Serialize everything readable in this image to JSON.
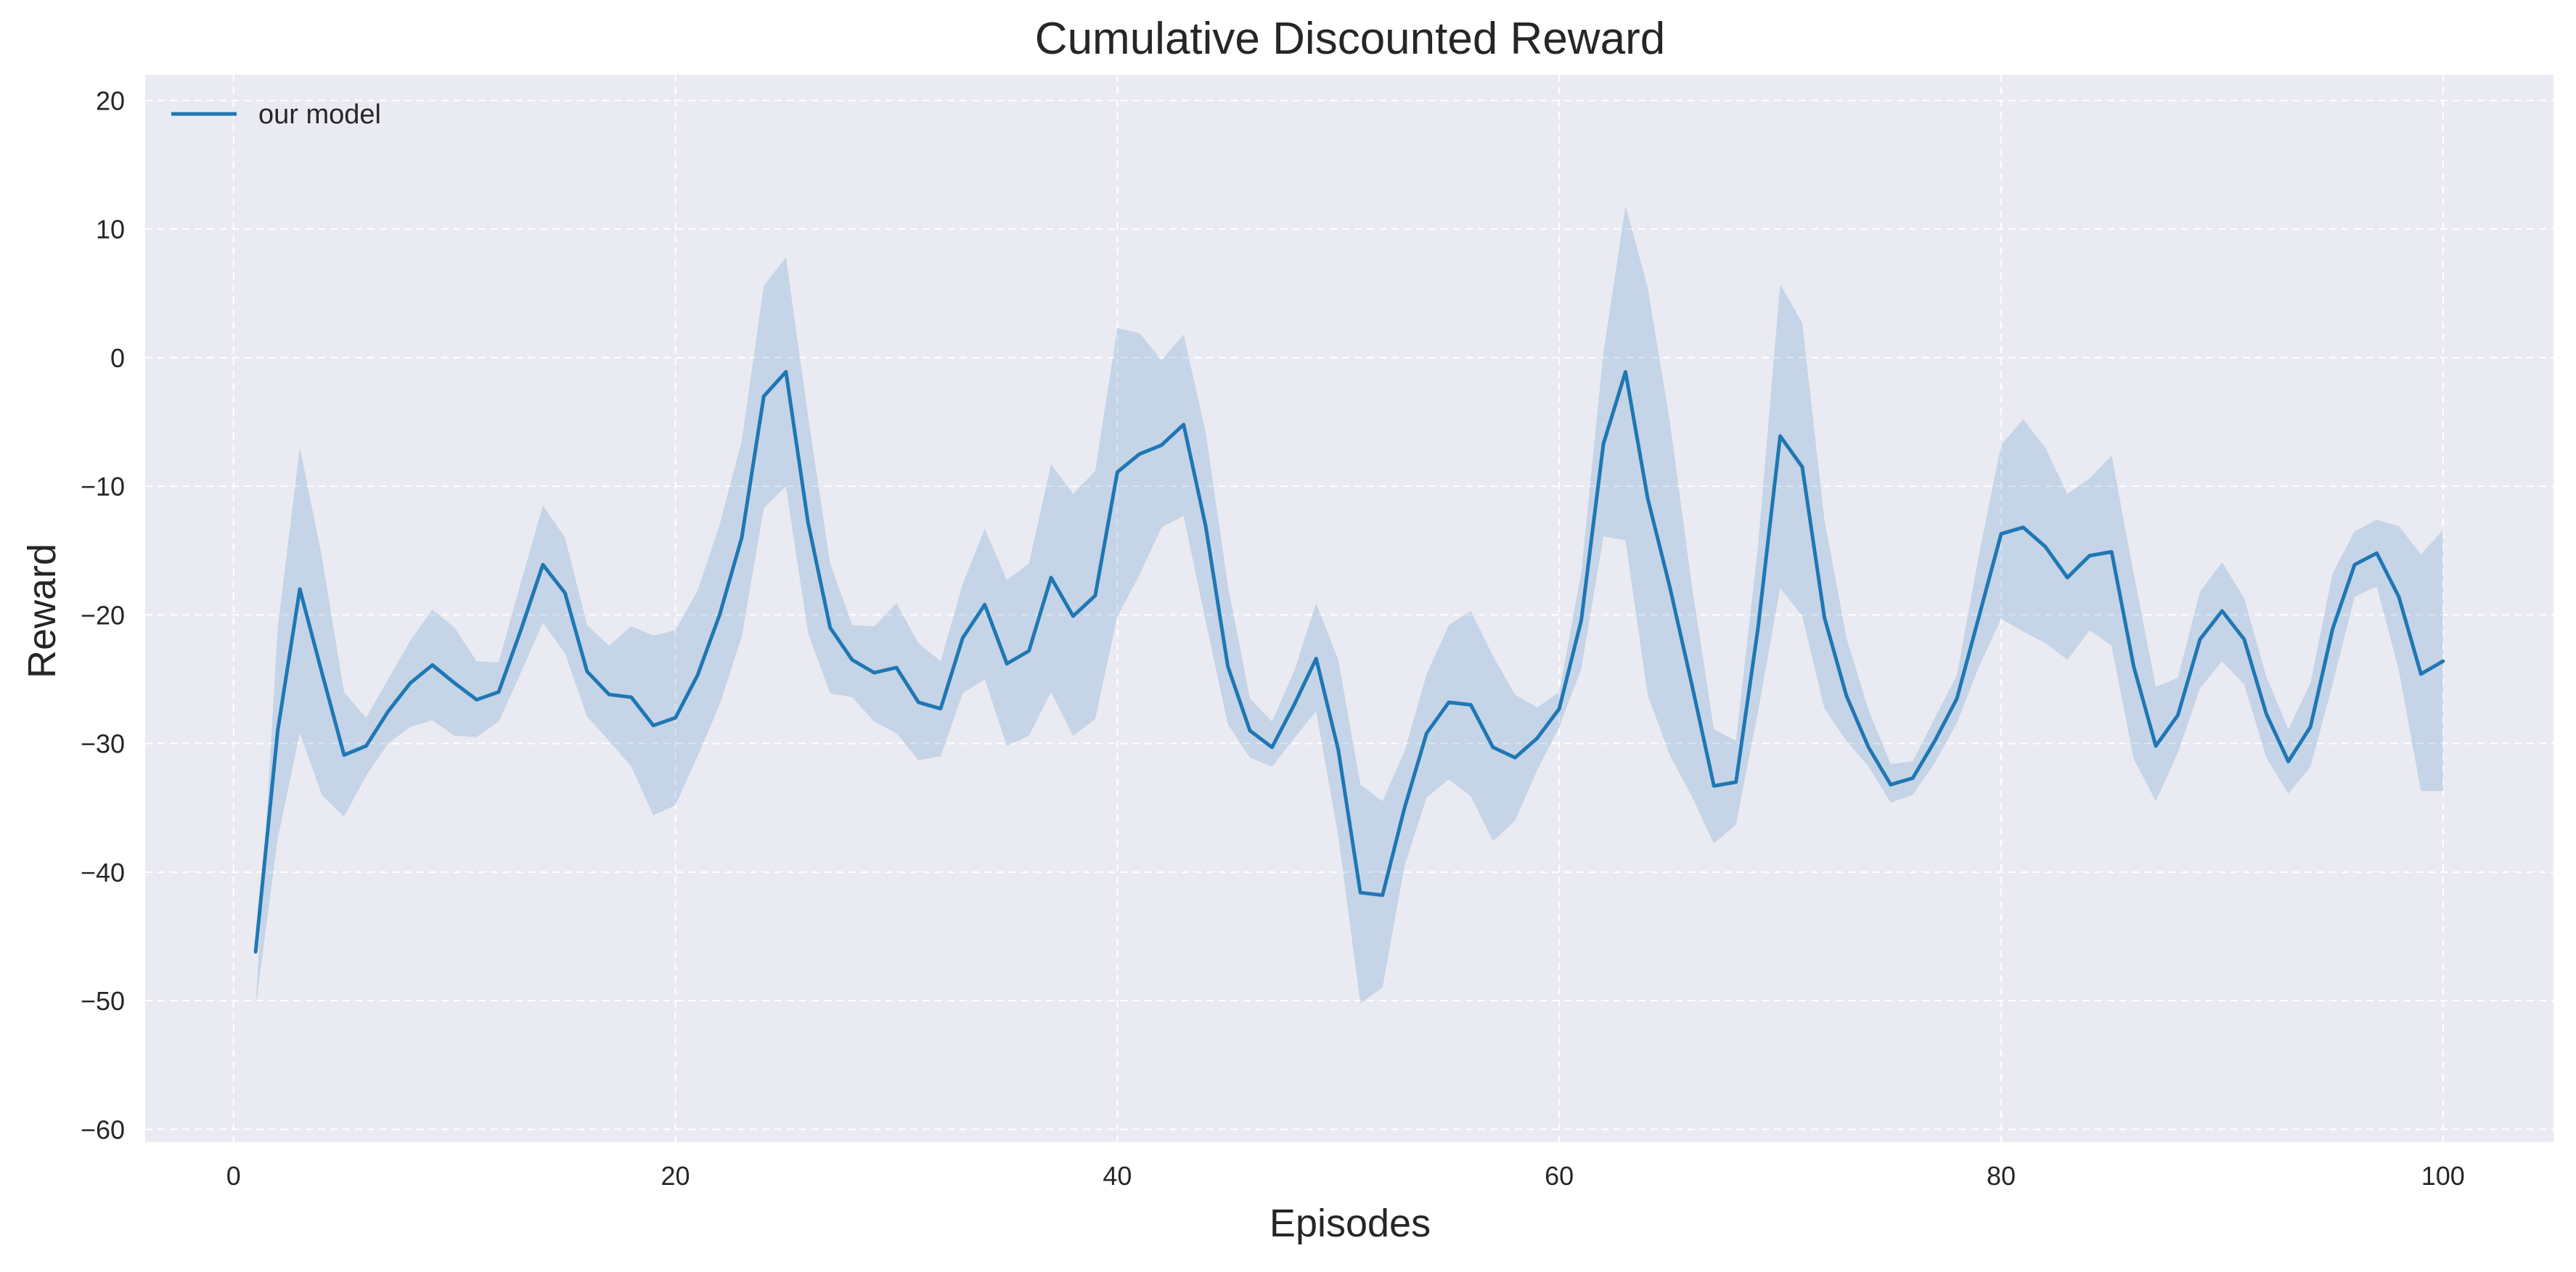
{
  "chart_data": {
    "type": "line",
    "title": "Cumulative Discounted Reward",
    "xlabel": "Episodes",
    "ylabel": "Reward",
    "xlim": [
      -4,
      105
    ],
    "ylim": [
      -61,
      22
    ],
    "xticks": [
      0,
      20,
      40,
      60,
      80,
      100
    ],
    "yticks": [
      -60,
      -50,
      -40,
      -30,
      -20,
      -10,
      0,
      10,
      20
    ],
    "grid": true,
    "legend_location": "top-left",
    "colors": {
      "line": "#1f77b4",
      "band": "#1f77b4",
      "background": "#eaeaf2",
      "grid": "#ffffff"
    },
    "series": [
      {
        "name": "our model",
        "x": [
          1,
          2,
          3,
          4,
          5,
          6,
          7,
          8,
          9,
          10,
          11,
          12,
          13,
          14,
          15,
          16,
          17,
          18,
          19,
          20,
          21,
          22,
          23,
          24,
          25,
          26,
          27,
          28,
          29,
          30,
          31,
          32,
          33,
          34,
          35,
          36,
          37,
          38,
          39,
          40,
          41,
          42,
          43,
          44,
          45,
          46,
          47,
          48,
          49,
          50,
          51,
          52,
          53,
          54,
          55,
          56,
          57,
          58,
          59,
          60,
          61,
          62,
          63,
          64,
          65,
          66,
          67,
          68,
          69,
          70,
          71,
          72,
          73,
          74,
          75,
          76,
          77,
          78,
          79,
          80,
          81,
          82,
          83,
          84,
          85,
          86,
          87,
          88,
          89,
          90,
          91,
          92,
          93,
          94,
          95,
          96,
          97,
          98,
          99,
          100
        ],
        "mean": [
          -46.2,
          -29.0,
          -18.0,
          -24.5,
          -30.9,
          -30.2,
          -27.5,
          -25.3,
          -23.9,
          -25.3,
          -26.6,
          -26.0,
          -21.2,
          -16.1,
          -18.3,
          -24.4,
          -26.2,
          -26.4,
          -28.6,
          -28.0,
          -24.7,
          -20.0,
          -14.0,
          -3.0,
          -1.1,
          -12.8,
          -21.0,
          -23.5,
          -24.5,
          -24.1,
          -26.8,
          -27.3,
          -21.8,
          -19.2,
          -23.8,
          -22.8,
          -17.1,
          -20.1,
          -18.5,
          -8.9,
          -7.5,
          -6.8,
          -5.2,
          -13.1,
          -24.0,
          -29.0,
          -30.3,
          -27.0,
          -23.4,
          -30.5,
          -41.6,
          -41.8,
          -35.0,
          -29.2,
          -26.8,
          -27.0,
          -30.3,
          -31.1,
          -29.6,
          -27.3,
          -20.4,
          -6.7,
          -1.1,
          -10.9,
          -17.8,
          -25.4,
          -33.3,
          -33.0,
          -21.0,
          -6.1,
          -8.5,
          -20.2,
          -26.3,
          -30.3,
          -33.2,
          -32.7,
          -29.8,
          -26.5,
          -20.1,
          -13.7,
          -13.2,
          -14.7,
          -17.1,
          -15.4,
          -15.1,
          -24.0,
          -30.2,
          -27.8,
          -21.9,
          -19.7,
          -21.9,
          -27.7,
          -31.4,
          -28.7,
          -21.1,
          -16.1,
          -15.2,
          -18.6,
          -24.6,
          -23.6
        ],
        "upper": [
          -50.5,
          -21.0,
          -7.0,
          -15.5,
          -26.0,
          -28.0,
          -25.0,
          -22.0,
          -19.6,
          -21.0,
          -23.6,
          -23.7,
          -17.5,
          -11.5,
          -14.0,
          -20.8,
          -22.4,
          -20.9,
          -21.6,
          -21.2,
          -18.1,
          -13.0,
          -6.5,
          5.6,
          7.8,
          -4.5,
          -16.0,
          -20.8,
          -20.9,
          -19.1,
          -22.2,
          -23.6,
          -17.6,
          -13.3,
          -17.3,
          -16.0,
          -8.3,
          -10.6,
          -8.8,
          2.3,
          1.9,
          -0.2,
          1.8,
          -5.8,
          -17.7,
          -26.5,
          -28.3,
          -24.4,
          -19.1,
          -23.5,
          -33.2,
          -34.5,
          -30.6,
          -24.6,
          -20.8,
          -19.7,
          -23.2,
          -26.2,
          -27.2,
          -26.0,
          -16.7,
          0.4,
          11.8,
          5.5,
          -4.9,
          -17.7,
          -28.9,
          -29.8,
          -14.6,
          5.7,
          2.7,
          -12.6,
          -21.8,
          -27.4,
          -31.6,
          -31.4,
          -28.0,
          -24.7,
          -15.3,
          -6.8,
          -4.8,
          -7.0,
          -10.6,
          -9.4,
          -7.6,
          -16.8,
          -25.6,
          -24.9,
          -18.2,
          -15.9,
          -18.7,
          -24.8,
          -28.9,
          -25.3,
          -16.8,
          -13.5,
          -12.6,
          -13.1,
          -15.3,
          -13.4
        ],
        "lower": [
          -50.5,
          -37.4,
          -29.2,
          -34.0,
          -35.7,
          -32.5,
          -30.0,
          -28.7,
          -28.2,
          -29.4,
          -29.5,
          -28.3,
          -24.5,
          -20.6,
          -23.0,
          -27.9,
          -29.8,
          -31.8,
          -35.6,
          -34.8,
          -31.0,
          -27.0,
          -21.7,
          -11.7,
          -10.0,
          -21.4,
          -26.1,
          -26.4,
          -28.3,
          -29.2,
          -31.3,
          -31.0,
          -26.1,
          -25.0,
          -30.2,
          -29.4,
          -26.0,
          -29.4,
          -28.1,
          -20.1,
          -16.9,
          -13.2,
          -12.3,
          -20.5,
          -28.5,
          -31.1,
          -31.8,
          -29.6,
          -27.5,
          -37.2,
          -50.2,
          -49.0,
          -39.5,
          -34.2,
          -32.8,
          -34.1,
          -37.6,
          -36.0,
          -32.1,
          -28.7,
          -24.2,
          -13.9,
          -14.2,
          -26.2,
          -30.9,
          -34.1,
          -37.8,
          -36.3,
          -27.5,
          -17.9,
          -20.1,
          -27.3,
          -29.8,
          -31.8,
          -34.6,
          -34.0,
          -31.5,
          -28.4,
          -24.0,
          -20.3,
          -21.3,
          -22.2,
          -23.5,
          -21.2,
          -22.4,
          -31.2,
          -34.5,
          -30.7,
          -25.7,
          -23.6,
          -25.4,
          -31.1,
          -33.9,
          -31.8,
          -25.4,
          -18.6,
          -17.8,
          -24.3,
          -33.7,
          -33.7
        ]
      }
    ]
  }
}
